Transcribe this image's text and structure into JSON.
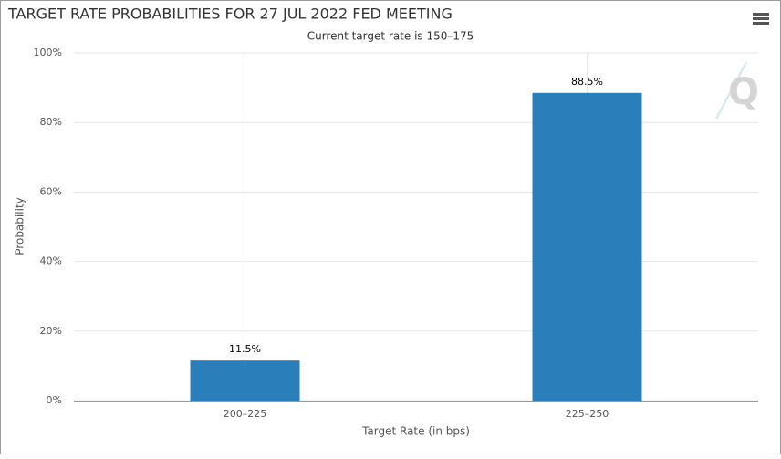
{
  "chart_data": {
    "type": "bar",
    "title": "TARGET RATE PROBABILITIES FOR 27 JUL 2022 FED MEETING",
    "subtitle": "Current target rate is 150–175",
    "x_label": "Target Rate (in bps)",
    "y_label": "Probability",
    "categories": [
      "200–225",
      "225–250"
    ],
    "values": [
      11.5,
      88.5
    ],
    "value_labels": [
      "11.5%",
      "88.5%"
    ],
    "color": "#2a7fba",
    "ylim": [
      0,
      100
    ],
    "yticks": [
      {
        "value": 0,
        "label": "0%"
      },
      {
        "value": 20,
        "label": "20%"
      },
      {
        "value": 40,
        "label": "40%"
      },
      {
        "value": 60,
        "label": "60%"
      },
      {
        "value": 80,
        "label": "80%"
      },
      {
        "value": 100,
        "label": "100%"
      }
    ],
    "grid": true
  }
}
